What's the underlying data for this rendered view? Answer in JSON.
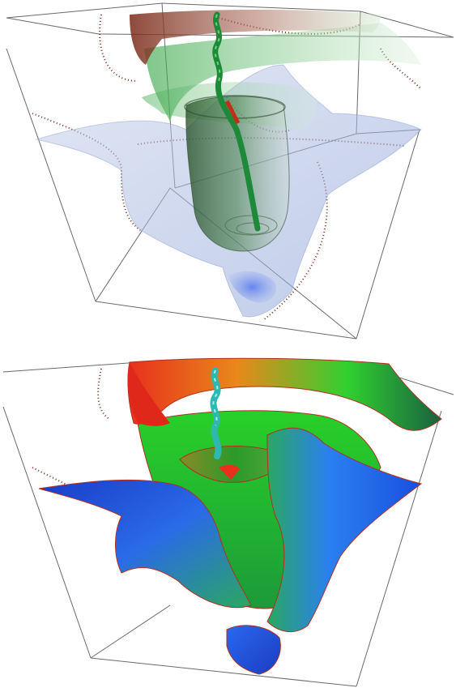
{
  "figure": {
    "panels": [
      {
        "id": "top",
        "rendering": "translucent-isosurfaces",
        "colors": {
          "green_surface": "#43b24a",
          "blue_surface": "#9fb2e0",
          "brown_surface": "#8a3a28",
          "core_dark": "#2a5a2a",
          "tube_green": "#1d8a3a",
          "dots": "#7a2a18",
          "box_lines": "#555555"
        }
      },
      {
        "id": "bottom",
        "rendering": "opaque-colormapped-surface",
        "colors": {
          "red": "#e8301c",
          "orange": "#e88a1a",
          "green": "#2fd02f",
          "blue": "#1a4fe0",
          "tube_cyan": "#2fb8b0",
          "edge": "#b03020",
          "box_lines": "#555555"
        }
      }
    ]
  }
}
